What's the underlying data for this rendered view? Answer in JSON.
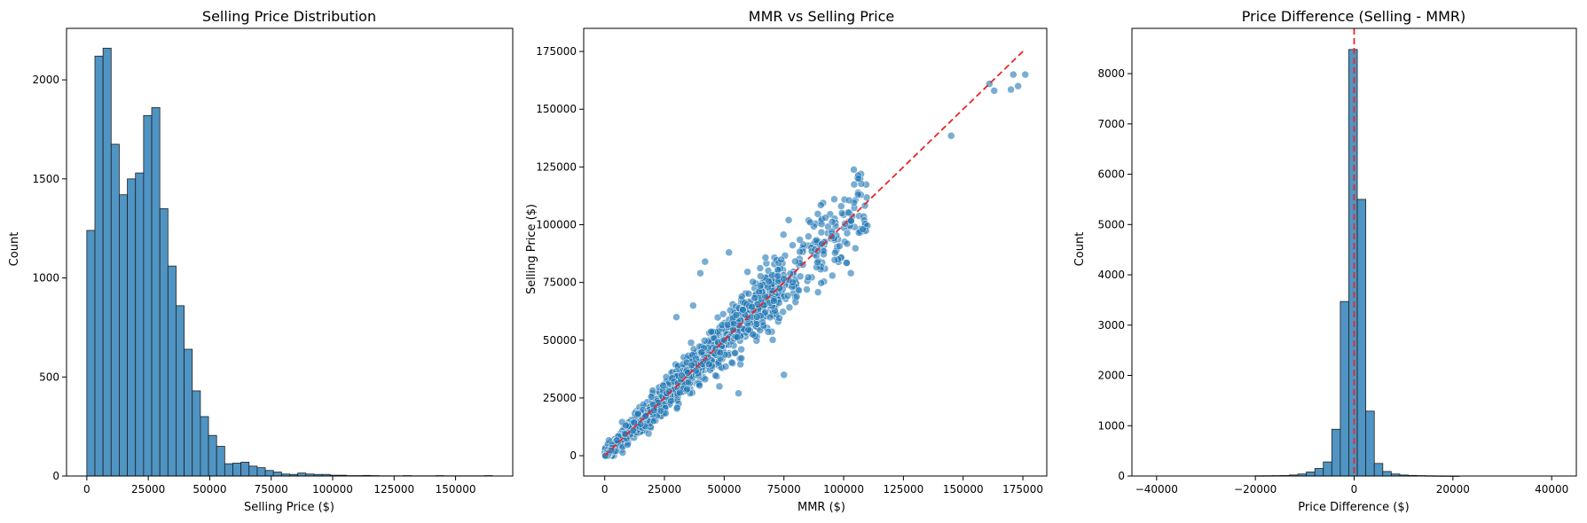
{
  "figure": {
    "background": "#ffffff"
  },
  "colors": {
    "bar": "#4f94c3",
    "bar_edge": "#1f1f1f",
    "scatter": "#1f77b4",
    "ref_line": "#e8262a"
  },
  "chart_data": [
    {
      "type": "bar",
      "title": "Selling Price Distribution",
      "xlabel": "Selling Price ($)",
      "ylabel": "Count",
      "xlim": [
        -8250,
        173250
      ],
      "ylim": [
        0,
        2260
      ],
      "xticks": [
        0,
        25000,
        50000,
        75000,
        100000,
        125000,
        150000
      ],
      "yticks": [
        0,
        500,
        1000,
        1500,
        2000
      ],
      "bin_start": 0,
      "bin_width": 3300,
      "counts": [
        1240,
        2120,
        2160,
        1675,
        1420,
        1500,
        1530,
        1820,
        1860,
        1350,
        1060,
        860,
        640,
        430,
        300,
        205,
        150,
        62,
        65,
        70,
        50,
        42,
        28,
        20,
        10,
        8,
        15,
        10,
        8,
        8,
        4,
        4,
        2,
        2,
        3,
        2,
        1,
        1,
        1,
        2,
        1,
        1,
        1,
        2,
        1,
        1,
        1,
        1,
        1,
        2
      ]
    },
    {
      "type": "scatter",
      "title": "MMR vs Selling Price",
      "xlabel": "MMR ($)",
      "ylabel": "Selling Price ($)",
      "xlim": [
        -8800,
        185000
      ],
      "ylim": [
        -8800,
        185000
      ],
      "xticks": [
        0,
        25000,
        50000,
        75000,
        100000,
        125000,
        150000,
        175000
      ],
      "yticks": [
        0,
        25000,
        50000,
        75000,
        100000,
        125000,
        150000,
        175000
      ],
      "reference_line": {
        "from": [
          0,
          0
        ],
        "to": [
          176000,
          176000
        ],
        "style": "dashed"
      },
      "outliers": [
        [
          145000,
          138500
        ],
        [
          161000,
          161000
        ],
        [
          163000,
          158000
        ],
        [
          170000,
          158500
        ],
        [
          171000,
          165000
        ],
        [
          173000,
          160000
        ],
        [
          176000,
          165000
        ],
        [
          106000,
          113000
        ],
        [
          103000,
          79000
        ],
        [
          75000,
          35000
        ],
        [
          42000,
          84000
        ],
        [
          40000,
          79000
        ],
        [
          52000,
          88000
        ],
        [
          37000,
          65000
        ],
        [
          30000,
          60000
        ],
        [
          56000,
          27000
        ],
        [
          48000,
          30000
        ],
        [
          108000,
          98000
        ],
        [
          99000,
          108000
        ],
        [
          95000,
          95000
        ],
        [
          86000,
          101000
        ],
        [
          77000,
          102000
        ]
      ],
      "point_count_note": "dense cloud along y=x from 0 to ~110000"
    },
    {
      "type": "bar",
      "title": "Price Difference (Selling - MMR)",
      "xlabel": "Price Difference ($)",
      "ylabel": "Count",
      "xlim": [
        -45000,
        45000
      ],
      "ylim": [
        0,
        8900
      ],
      "xticks": [
        -40000,
        -20000,
        0,
        20000,
        40000
      ],
      "yticks": [
        0,
        1000,
        2000,
        3000,
        4000,
        5000,
        6000,
        7000,
        8000
      ],
      "reference_vline": 0,
      "bins": [
        [
          -20000,
          5
        ],
        [
          -18280,
          6
        ],
        [
          -16560,
          8
        ],
        [
          -14840,
          10
        ],
        [
          -13120,
          20
        ],
        [
          -11400,
          40
        ],
        [
          -9680,
          80
        ],
        [
          -7960,
          150
        ],
        [
          -6240,
          280
        ],
        [
          -4520,
          930
        ],
        [
          -2800,
          3470
        ],
        [
          -1080,
          8480
        ],
        [
          640,
          5500
        ],
        [
          2360,
          1290
        ],
        [
          4080,
          250
        ],
        [
          5800,
          90
        ],
        [
          7520,
          40
        ],
        [
          9240,
          20
        ],
        [
          10960,
          12
        ],
        [
          12680,
          8
        ],
        [
          14400,
          5
        ],
        [
          16120,
          3
        ],
        [
          17840,
          2
        ],
        [
          19560,
          1
        ]
      ]
    }
  ]
}
